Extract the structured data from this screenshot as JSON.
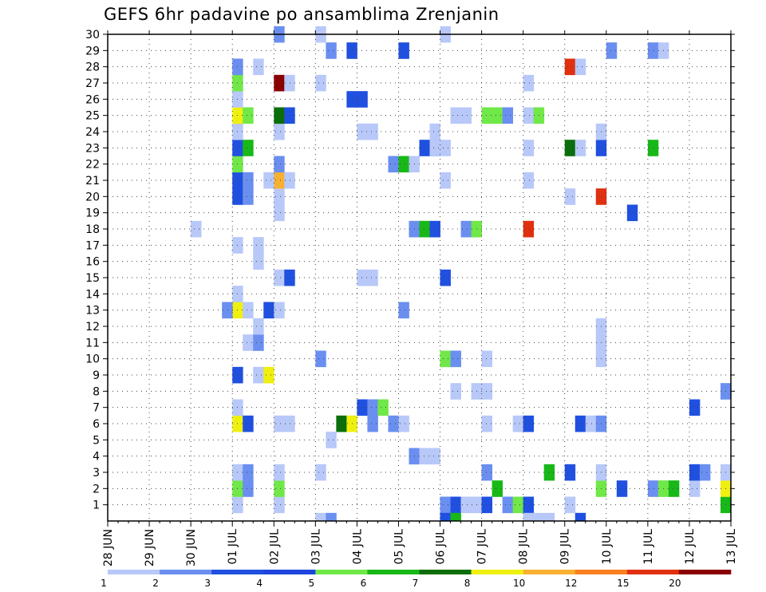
{
  "chart_data": {
    "type": "heatmap",
    "title": "GEFS 6hr padavine po ansamblima Zrenjanin",
    "xlabel": "",
    "ylabel": "",
    "x_tick_labels": [
      "28 JUN",
      "29 JUN",
      "30 JUN",
      "01 JUL",
      "02 JUL",
      "03 JUL",
      "04 JUL",
      "05 JUL",
      "06 JUL",
      "07 JUL",
      "08 JUL",
      "09 JUL",
      "10 JUL",
      "11 JUL",
      "12 JUL",
      "13 JUL"
    ],
    "x_axis": {
      "start_day": 0,
      "end_day": 15,
      "steps_per_day": 4
    },
    "y_tick_labels": [
      "1",
      "2",
      "3",
      "4",
      "5",
      "6",
      "7",
      "8",
      "9",
      "10",
      "11",
      "12",
      "13",
      "14",
      "15",
      "16",
      "17",
      "18",
      "19",
      "20",
      "21",
      "22",
      "23",
      "24",
      "25",
      "26",
      "27",
      "28",
      "29",
      "30"
    ],
    "y_range": [
      0,
      30
    ],
    "grid": true,
    "legend": {
      "placement": "bottom",
      "thresholds": [
        "1",
        "2",
        "3",
        "4",
        "5",
        "6",
        "7",
        "8",
        "10",
        "12",
        "15",
        "20"
      ],
      "colors": [
        "#b8c8f8",
        "#6a8ff0",
        "#2050e0",
        "#1e44dc",
        "#70e848",
        "#18b818",
        "#0a6e0a",
        "#f0f010",
        "#f8b030",
        "#f88020",
        "#e03010",
        "#8a0000"
      ]
    },
    "cells": [
      [
        3.0,
        1,
        0
      ],
      [
        3.0,
        2,
        4
      ],
      [
        3.0,
        3,
        0
      ],
      [
        3.0,
        6,
        7
      ],
      [
        3.0,
        7,
        0
      ],
      [
        3.0,
        9,
        2
      ],
      [
        3.0,
        13,
        7
      ],
      [
        3.0,
        14,
        0
      ],
      [
        3.0,
        17,
        0
      ],
      [
        3.0,
        20,
        2
      ],
      [
        3.0,
        21,
        2
      ],
      [
        3.0,
        22,
        4
      ],
      [
        3.0,
        23,
        2
      ],
      [
        3.0,
        24,
        0
      ],
      [
        3.0,
        25,
        7
      ],
      [
        3.0,
        26,
        0
      ],
      [
        3.0,
        27,
        4
      ],
      [
        3.0,
        28,
        1
      ],
      [
        3.25,
        2,
        1
      ],
      [
        3.25,
        3,
        1
      ],
      [
        3.25,
        6,
        2
      ],
      [
        3.25,
        11,
        0
      ],
      [
        3.25,
        13,
        0
      ],
      [
        3.25,
        20,
        1
      ],
      [
        3.25,
        21,
        1
      ],
      [
        3.25,
        23,
        5
      ],
      [
        3.25,
        25,
        4
      ],
      [
        2.75,
        13,
        1
      ],
      [
        3.5,
        9,
        0
      ],
      [
        3.5,
        11,
        1
      ],
      [
        3.5,
        12,
        0
      ],
      [
        3.5,
        16,
        0
      ],
      [
        3.5,
        17,
        0
      ],
      [
        3.5,
        28,
        0
      ],
      [
        3.75,
        9,
        7
      ],
      [
        3.75,
        13,
        2
      ],
      [
        2.0,
        18,
        0
      ],
      [
        4.0,
        1,
        0
      ],
      [
        4.0,
        2,
        4
      ],
      [
        4.0,
        3,
        0
      ],
      [
        4.0,
        6,
        0
      ],
      [
        4.0,
        13,
        0
      ],
      [
        4.0,
        15,
        0
      ],
      [
        4.0,
        19,
        0
      ],
      [
        4.0,
        20,
        0
      ],
      [
        4.0,
        21,
        8
      ],
      [
        4.0,
        22,
        1
      ],
      [
        4.0,
        24,
        0
      ],
      [
        4.0,
        25,
        6
      ],
      [
        4.0,
        27,
        11
      ],
      [
        4.0,
        30,
        1
      ],
      [
        3.75,
        21,
        0
      ],
      [
        4.25,
        6,
        0
      ],
      [
        4.25,
        15,
        2
      ],
      [
        4.25,
        21,
        0
      ],
      [
        4.25,
        25,
        2
      ],
      [
        4.25,
        27,
        0
      ],
      [
        5.0,
        0,
        0
      ],
      [
        5.0,
        3,
        0
      ],
      [
        5.0,
        10,
        1
      ],
      [
        5.0,
        27,
        0
      ],
      [
        5.0,
        30,
        0
      ],
      [
        5.25,
        0,
        1
      ],
      [
        5.25,
        5,
        0
      ],
      [
        5.25,
        29,
        1
      ],
      [
        5.5,
        6,
        6
      ],
      [
        5.75,
        6,
        7
      ],
      [
        5.75,
        26,
        2
      ],
      [
        5.75,
        29,
        2
      ],
      [
        6.0,
        24,
        0
      ],
      [
        6.0,
        26,
        2
      ],
      [
        6.0,
        7,
        2
      ],
      [
        6.25,
        7,
        1
      ],
      [
        6.5,
        7,
        4
      ],
      [
        6.0,
        15,
        0
      ],
      [
        6.25,
        15,
        0
      ],
      [
        6.25,
        24,
        0
      ],
      [
        6.25,
        6,
        1
      ],
      [
        6.75,
        22,
        1
      ],
      [
        6.75,
        6,
        1
      ],
      [
        7.0,
        22,
        5
      ],
      [
        7.0,
        6,
        0
      ],
      [
        7.25,
        22,
        0
      ],
      [
        7.0,
        29,
        2
      ],
      [
        7.0,
        13,
        1
      ],
      [
        7.25,
        4,
        1
      ],
      [
        7.5,
        4,
        0
      ],
      [
        7.75,
        4,
        0
      ],
      [
        7.25,
        18,
        1
      ],
      [
        7.5,
        18,
        5
      ],
      [
        7.75,
        18,
        2
      ],
      [
        7.5,
        23,
        2
      ],
      [
        7.75,
        23,
        1
      ],
      [
        7.75,
        23,
        0
      ],
      [
        7.75,
        24,
        0
      ],
      [
        8.0,
        23,
        0
      ],
      [
        8.0,
        30,
        0
      ],
      [
        8.0,
        15,
        2
      ],
      [
        8.0,
        1,
        1
      ],
      [
        8.0,
        0,
        2
      ],
      [
        8.25,
        1,
        2
      ],
      [
        8.25,
        0,
        5
      ],
      [
        8.0,
        21,
        0
      ],
      [
        8.0,
        10,
        4
      ],
      [
        8.25,
        10,
        1
      ],
      [
        8.25,
        25,
        0
      ],
      [
        8.5,
        25,
        0
      ],
      [
        8.25,
        8,
        0
      ],
      [
        8.5,
        1,
        0
      ],
      [
        8.75,
        1,
        0
      ],
      [
        8.5,
        18,
        1
      ],
      [
        8.75,
        18,
        4
      ],
      [
        8.75,
        8,
        0
      ],
      [
        9.0,
        8,
        0
      ],
      [
        9.0,
        10,
        0
      ],
      [
        9.0,
        1,
        2
      ],
      [
        9.0,
        3,
        1
      ],
      [
        9.0,
        6,
        0
      ],
      [
        9.0,
        25,
        4
      ],
      [
        9.25,
        25,
        4
      ],
      [
        9.5,
        25,
        1
      ],
      [
        9.25,
        2,
        5
      ],
      [
        9.5,
        1,
        1
      ],
      [
        9.75,
        1,
        4
      ],
      [
        9.75,
        6,
        0
      ],
      [
        10.0,
        1,
        2
      ],
      [
        10.0,
        0,
        0
      ],
      [
        10.0,
        6,
        2
      ],
      [
        10.0,
        18,
        10
      ],
      [
        10.0,
        21,
        0
      ],
      [
        10.0,
        23,
        0
      ],
      [
        10.0,
        25,
        0
      ],
      [
        10.0,
        27,
        0
      ],
      [
        10.25,
        25,
        4
      ],
      [
        10.25,
        0,
        0
      ],
      [
        10.5,
        0,
        0
      ],
      [
        10.5,
        3,
        5
      ],
      [
        11.0,
        3,
        2
      ],
      [
        11.0,
        28,
        10
      ],
      [
        11.25,
        28,
        0
      ],
      [
        11.0,
        20,
        0
      ],
      [
        11.0,
        1,
        0
      ],
      [
        11.0,
        23,
        6
      ],
      [
        11.25,
        23,
        0
      ],
      [
        11.25,
        6,
        2
      ],
      [
        11.5,
        6,
        0
      ],
      [
        11.25,
        0,
        2
      ],
      [
        11.75,
        2,
        4
      ],
      [
        11.75,
        3,
        0
      ],
      [
        11.75,
        6,
        1
      ],
      [
        11.75,
        10,
        0
      ],
      [
        11.75,
        11,
        0
      ],
      [
        11.75,
        12,
        0
      ],
      [
        11.75,
        20,
        10
      ],
      [
        11.75,
        23,
        2
      ],
      [
        11.75,
        24,
        0
      ],
      [
        12.0,
        29,
        1
      ],
      [
        12.25,
        2,
        2
      ],
      [
        12.5,
        19,
        2
      ],
      [
        13.0,
        2,
        1
      ],
      [
        13.0,
        23,
        5
      ],
      [
        13.0,
        29,
        1
      ],
      [
        13.25,
        29,
        0
      ],
      [
        13.25,
        2,
        0
      ],
      [
        13.25,
        2,
        4
      ],
      [
        13.5,
        2,
        5
      ],
      [
        14.0,
        2,
        0
      ],
      [
        14.0,
        3,
        2
      ],
      [
        14.0,
        7,
        2
      ],
      [
        14.25,
        3,
        1
      ],
      [
        14.75,
        1,
        5
      ],
      [
        14.75,
        2,
        7
      ],
      [
        14.75,
        3,
        0
      ],
      [
        14.75,
        8,
        1
      ]
    ]
  }
}
